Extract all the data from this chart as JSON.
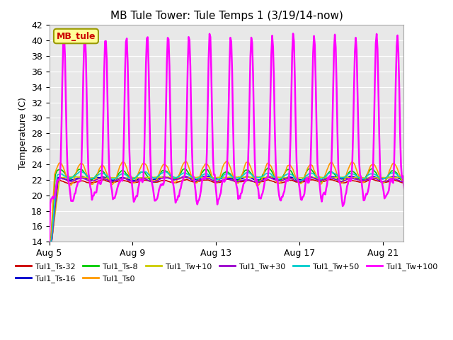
{
  "title": "MB Tule Tower: Tule Temps 1 (3/19/14-now)",
  "ylabel": "Temperature (C)",
  "xlabel": "",
  "ylim": [
    14,
    42
  ],
  "yticks": [
    14,
    16,
    18,
    20,
    22,
    24,
    26,
    28,
    30,
    32,
    34,
    36,
    38,
    40,
    42
  ],
  "xtick_labels": [
    "Aug 5",
    "Aug 9",
    "Aug 13",
    "Aug 17",
    "Aug 21"
  ],
  "background_color": "#ffffff",
  "plot_bg_color": "#e8e8e8",
  "grid_color": "#ffffff",
  "series": {
    "Tul1_Ts-32": {
      "color": "#cc0000",
      "lw": 1.2
    },
    "Tul1_Ts-16": {
      "color": "#0000cc",
      "lw": 1.2
    },
    "Tul1_Ts-8": {
      "color": "#00cc00",
      "lw": 1.2
    },
    "Tul1_Ts0": {
      "color": "#ff9900",
      "lw": 1.2
    },
    "Tul1_Tw+10": {
      "color": "#cccc00",
      "lw": 1.2
    },
    "Tul1_Tw+30": {
      "color": "#9900cc",
      "lw": 1.2
    },
    "Tul1_Tw+50": {
      "color": "#00cccc",
      "lw": 1.2
    },
    "Tul1_Tw+100": {
      "color": "#ff00ff",
      "lw": 1.8
    }
  },
  "legend_box_color": "#ffff99",
  "legend_box_edge": "#999900",
  "legend_text": "MB_tule",
  "legend_text_color": "#cc0000"
}
